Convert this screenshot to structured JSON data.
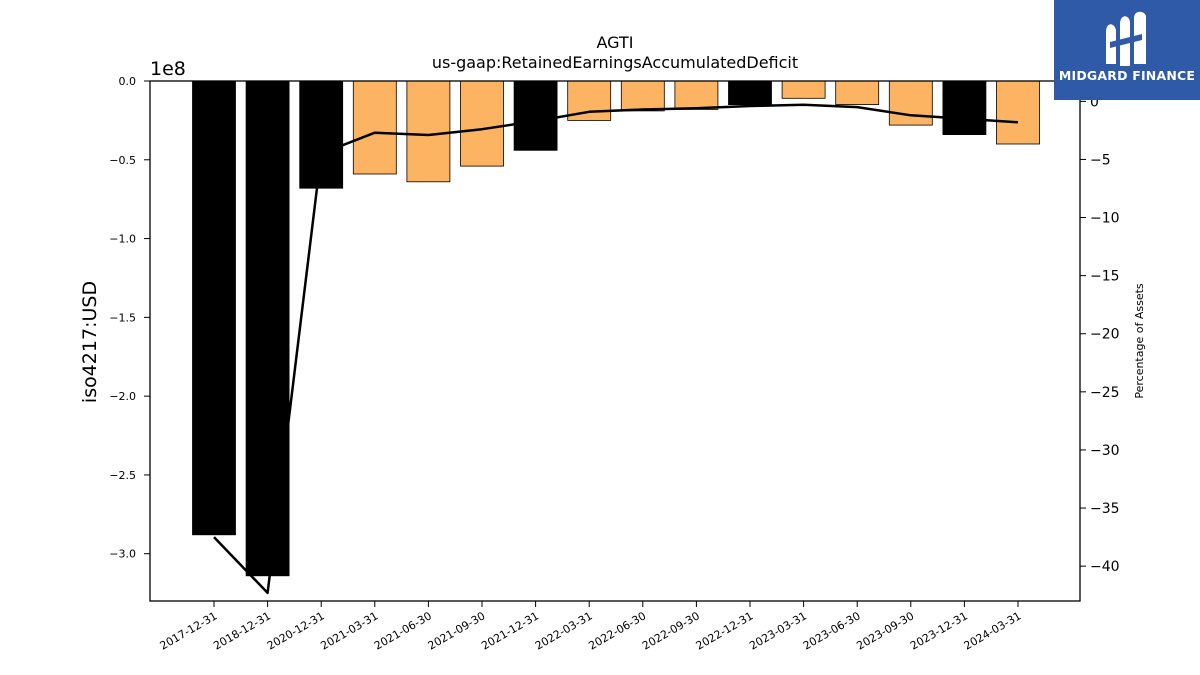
{
  "brand": {
    "name": "MIDGARD FINANCE",
    "icon": "midgard-logo-icon",
    "color": "#2f5aa8"
  },
  "chart_data": {
    "type": "bar",
    "title": "AGTI",
    "subtitle": "us-gaap:RetainedEarningsAccumulatedDeficit",
    "ylabel": "iso4217:USD",
    "y2label": "Percentage of Assets",
    "offset_label": "1e8",
    "categories": [
      "2017-12-31",
      "2018-12-31",
      "2020-12-31",
      "2021-03-31",
      "2021-06-30",
      "2021-09-30",
      "2021-12-31",
      "2022-03-31",
      "2022-06-30",
      "2022-09-30",
      "2022-12-31",
      "2023-03-31",
      "2023-06-30",
      "2023-09-30",
      "2023-12-31",
      "2024-03-31"
    ],
    "series": [
      {
        "kind": "bar",
        "values": [
          -2.88,
          -3.14,
          -0.68,
          -0.59,
          -0.64,
          -0.54,
          -0.44,
          -0.25,
          -0.19,
          -0.18,
          -0.15,
          -0.11,
          -0.15,
          -0.28,
          -0.34,
          -0.4
        ],
        "colors": [
          "#000000",
          "#000000",
          "#000000",
          "#fdb462",
          "#fdb462",
          "#fdb462",
          "#000000",
          "#fdb462",
          "#fdb462",
          "#fdb462",
          "#000000",
          "#fdb462",
          "#fdb462",
          "#fdb462",
          "#000000",
          "#fdb462"
        ]
      },
      {
        "kind": "line",
        "axis": "right",
        "color": "#000000",
        "values": [
          -37.5,
          -42.3,
          -4.5,
          -2.7,
          -2.9,
          -2.4,
          -1.7,
          -0.9,
          -0.7,
          -0.6,
          -0.4,
          -0.3,
          -0.5,
          -1.2,
          -1.5,
          -1.8
        ]
      }
    ],
    "ylim": [
      -3.3,
      0.0
    ],
    "yticks": [
      0.0,
      -0.5,
      -1.0,
      -1.5,
      -2.0,
      -2.5,
      -3.0
    ],
    "ytick_labels": [
      "0.0",
      "−0.5",
      "−1.0",
      "−1.5",
      "−2.0",
      "−2.5",
      "−3.0"
    ],
    "y2lim": [
      -43.0,
      1.75
    ],
    "y2ticks": [
      0,
      -5,
      -10,
      -15,
      -20,
      -25,
      -30,
      -35,
      -40
    ],
    "y2tick_labels": [
      "0",
      "−5",
      "−10",
      "−15",
      "−20",
      "−25",
      "−30",
      "−35",
      "−40"
    ],
    "grid": false,
    "legend": "none"
  }
}
